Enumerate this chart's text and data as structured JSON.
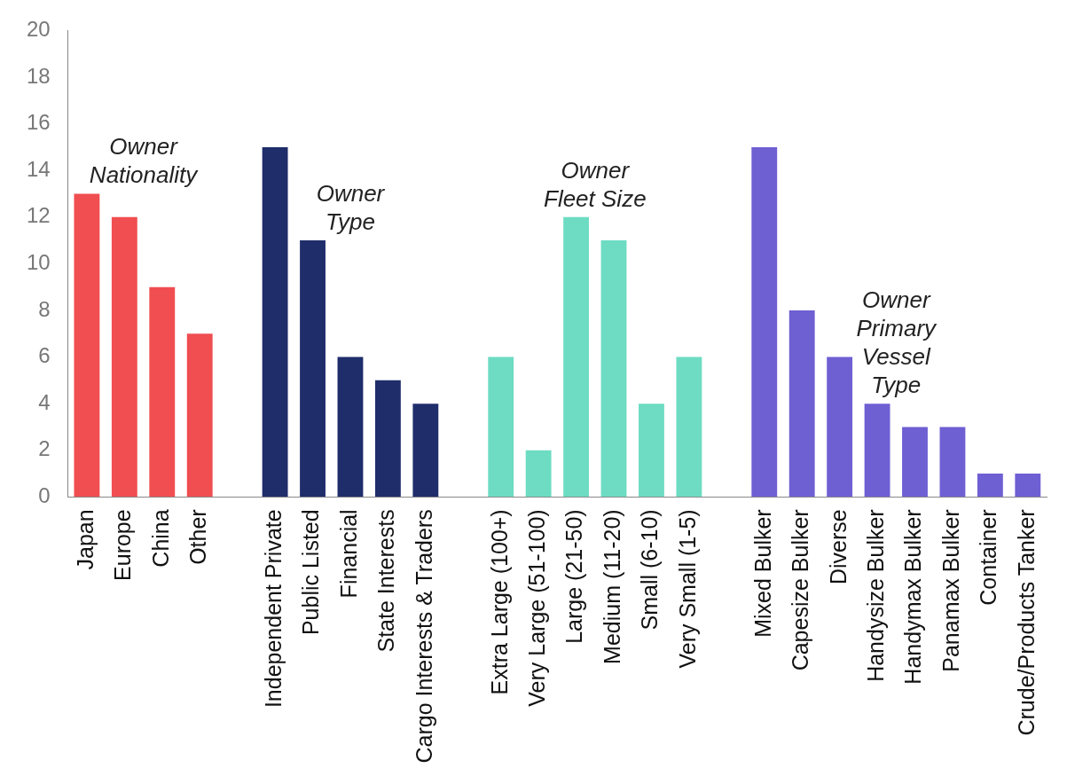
{
  "chart_data": {
    "type": "bar",
    "categories": [
      "Japan",
      "Europe",
      "China",
      "Other",
      null,
      "Independent Private",
      "Public Listed",
      "Financial",
      "State Interests",
      "Cargo Interests & Traders",
      null,
      "Extra Large (100+)",
      "Very Large (51-100)",
      "Large (21-50)",
      "Medium (11-20)",
      "Small (6-10)",
      "Very Small (1-5)",
      null,
      "Mixed Bulker",
      "Capesize Bulker",
      "Diverse",
      "Handysize Bulker",
      "Handymax Bulker",
      "Panamax Bulker",
      "Container",
      "Crude/Products Tanker"
    ],
    "values": [
      13,
      12,
      9,
      7,
      null,
      15,
      11,
      6,
      5,
      4,
      null,
      6,
      2,
      12,
      11,
      4,
      6,
      null,
      15,
      8,
      6,
      4,
      3,
      3,
      1,
      1
    ],
    "colors": [
      "#f04e50",
      "#f04e50",
      "#f04e50",
      "#f04e50",
      null,
      "#1f2d6b",
      "#1f2d6b",
      "#1f2d6b",
      "#1f2d6b",
      "#1f2d6b",
      null,
      "#6ddcc2",
      "#6ddcc2",
      "#6ddcc2",
      "#6ddcc2",
      "#6ddcc2",
      "#6ddcc2",
      null,
      "#6e5fd3",
      "#6e5fd3",
      "#6e5fd3",
      "#6e5fd3",
      "#6e5fd3",
      "#6e5fd3",
      "#6e5fd3",
      "#6e5fd3"
    ],
    "ylim": [
      0,
      20
    ],
    "yticks": [
      0,
      2,
      4,
      6,
      8,
      10,
      12,
      14,
      16,
      18,
      20
    ],
    "grid": false,
    "legend": false,
    "annotations": [
      "Owner\nNationality",
      "Owner\nType",
      "Owner\nFleet Size",
      "Owner\nPrimary\nVessel\nType"
    ]
  }
}
